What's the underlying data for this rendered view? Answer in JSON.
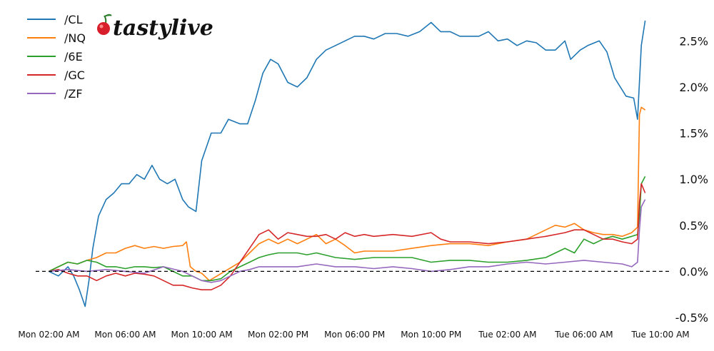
{
  "brand": {
    "name": "tastylive",
    "logo_icon": "cherry-icon"
  },
  "chart_data": {
    "type": "line",
    "title": "",
    "xlabel": "",
    "ylabel": "",
    "ylim": [
      -0.5,
      2.75
    ],
    "yticks": [
      -0.5,
      0.0,
      0.5,
      1.0,
      1.5,
      2.0,
      2.5
    ],
    "ytick_labels": [
      "-0.5%",
      "0.0%",
      "0.5%",
      "1.0%",
      "1.5%",
      "2.0%",
      "2.5%"
    ],
    "xlim": [
      1.5,
      34.0
    ],
    "xticks": [
      2,
      6,
      10,
      14,
      18,
      22,
      26,
      30,
      34
    ],
    "xtick_labels": [
      "Mon 02:00 AM",
      "Mon 06:00 AM",
      "Mon 10:00 AM",
      "Mon 02:00 PM",
      "Mon 06:00 PM",
      "Mon 10:00 PM",
      "Tue 02:00 AM",
      "Tue 06:00 AM",
      "Tue 10:00 AM"
    ],
    "x_unit": "hours since Mon 00:00",
    "reference_line": {
      "y": 0.0,
      "style": "dashed"
    },
    "legend_position": "top-left",
    "grid": false,
    "series": [
      {
        "name": "/CL",
        "color": "#1f77b4",
        "points": [
          [
            2.0,
            0.0
          ],
          [
            2.5,
            -0.05
          ],
          [
            3.0,
            0.05
          ],
          [
            3.3,
            -0.05
          ],
          [
            3.6,
            -0.2
          ],
          [
            3.9,
            -0.38
          ],
          [
            4.1,
            -0.1
          ],
          [
            4.3,
            0.25
          ],
          [
            4.6,
            0.6
          ],
          [
            5.0,
            0.78
          ],
          [
            5.4,
            0.85
          ],
          [
            5.8,
            0.95
          ],
          [
            6.2,
            0.95
          ],
          [
            6.6,
            1.05
          ],
          [
            7.0,
            1.0
          ],
          [
            7.4,
            1.15
          ],
          [
            7.8,
            1.0
          ],
          [
            8.2,
            0.95
          ],
          [
            8.6,
            1.0
          ],
          [
            9.0,
            0.78
          ],
          [
            9.3,
            0.7
          ],
          [
            9.7,
            0.65
          ],
          [
            10.0,
            1.2
          ],
          [
            10.5,
            1.5
          ],
          [
            11.0,
            1.5
          ],
          [
            11.4,
            1.65
          ],
          [
            12.0,
            1.6
          ],
          [
            12.4,
            1.6
          ],
          [
            12.8,
            1.85
          ],
          [
            13.2,
            2.15
          ],
          [
            13.6,
            2.3
          ],
          [
            14.0,
            2.25
          ],
          [
            14.5,
            2.05
          ],
          [
            15.0,
            2.0
          ],
          [
            15.5,
            2.1
          ],
          [
            16.0,
            2.3
          ],
          [
            16.5,
            2.4
          ],
          [
            17.0,
            2.45
          ],
          [
            17.5,
            2.5
          ],
          [
            18.0,
            2.55
          ],
          [
            18.5,
            2.55
          ],
          [
            19.0,
            2.52
          ],
          [
            19.6,
            2.58
          ],
          [
            20.2,
            2.58
          ],
          [
            20.8,
            2.55
          ],
          [
            21.4,
            2.6
          ],
          [
            22.0,
            2.7
          ],
          [
            22.5,
            2.6
          ],
          [
            23.0,
            2.6
          ],
          [
            23.5,
            2.55
          ],
          [
            24.0,
            2.55
          ],
          [
            24.5,
            2.55
          ],
          [
            25.0,
            2.6
          ],
          [
            25.5,
            2.5
          ],
          [
            26.0,
            2.52
          ],
          [
            26.5,
            2.45
          ],
          [
            27.0,
            2.5
          ],
          [
            27.5,
            2.48
          ],
          [
            28.0,
            2.4
          ],
          [
            28.5,
            2.4
          ],
          [
            29.0,
            2.5
          ],
          [
            29.3,
            2.3
          ],
          [
            29.8,
            2.4
          ],
          [
            30.2,
            2.45
          ],
          [
            30.8,
            2.5
          ],
          [
            31.2,
            2.38
          ],
          [
            31.6,
            2.1
          ],
          [
            31.9,
            2.0
          ],
          [
            32.2,
            1.9
          ],
          [
            32.6,
            1.88
          ],
          [
            32.8,
            1.65
          ],
          [
            33.0,
            2.45
          ],
          [
            33.2,
            2.72
          ]
        ]
      },
      {
        "name": "/NQ",
        "color": "#ff7f0e",
        "points": [
          [
            2.0,
            0.0
          ],
          [
            2.5,
            0.05
          ],
          [
            3.0,
            0.1
          ],
          [
            3.5,
            0.08
          ],
          [
            4.0,
            0.12
          ],
          [
            4.5,
            0.15
          ],
          [
            5.0,
            0.2
          ],
          [
            5.5,
            0.2
          ],
          [
            6.0,
            0.25
          ],
          [
            6.5,
            0.28
          ],
          [
            7.0,
            0.25
          ],
          [
            7.5,
            0.27
          ],
          [
            8.0,
            0.25
          ],
          [
            8.5,
            0.27
          ],
          [
            9.0,
            0.28
          ],
          [
            9.2,
            0.32
          ],
          [
            9.4,
            0.05
          ],
          [
            9.7,
            0.0
          ],
          [
            10.0,
            -0.02
          ],
          [
            10.4,
            -0.1
          ],
          [
            10.8,
            -0.05
          ],
          [
            11.2,
            0.0
          ],
          [
            11.6,
            0.05
          ],
          [
            12.0,
            0.1
          ],
          [
            12.5,
            0.2
          ],
          [
            13.0,
            0.3
          ],
          [
            13.5,
            0.35
          ],
          [
            14.0,
            0.3
          ],
          [
            14.5,
            0.35
          ],
          [
            15.0,
            0.3
          ],
          [
            15.5,
            0.35
          ],
          [
            16.0,
            0.4
          ],
          [
            16.5,
            0.3
          ],
          [
            17.0,
            0.35
          ],
          [
            17.5,
            0.28
          ],
          [
            18.0,
            0.2
          ],
          [
            18.5,
            0.22
          ],
          [
            19.0,
            0.22
          ],
          [
            20.0,
            0.22
          ],
          [
            21.0,
            0.25
          ],
          [
            22.0,
            0.28
          ],
          [
            23.0,
            0.3
          ],
          [
            24.0,
            0.3
          ],
          [
            25.0,
            0.28
          ],
          [
            26.0,
            0.32
          ],
          [
            27.0,
            0.35
          ],
          [
            28.0,
            0.45
          ],
          [
            28.5,
            0.5
          ],
          [
            29.0,
            0.48
          ],
          [
            29.5,
            0.52
          ],
          [
            30.0,
            0.45
          ],
          [
            30.5,
            0.42
          ],
          [
            31.0,
            0.4
          ],
          [
            31.5,
            0.4
          ],
          [
            32.0,
            0.38
          ],
          [
            32.5,
            0.42
          ],
          [
            32.8,
            0.48
          ],
          [
            32.9,
            1.7
          ],
          [
            33.0,
            1.78
          ],
          [
            33.2,
            1.75
          ]
        ]
      },
      {
        "name": "/6E",
        "color": "#2ca02c",
        "points": [
          [
            2.0,
            0.0
          ],
          [
            2.5,
            0.05
          ],
          [
            3.0,
            0.1
          ],
          [
            3.5,
            0.08
          ],
          [
            4.0,
            0.12
          ],
          [
            4.5,
            0.1
          ],
          [
            5.0,
            0.05
          ],
          [
            5.5,
            0.05
          ],
          [
            6.0,
            0.03
          ],
          [
            6.5,
            0.05
          ],
          [
            7.0,
            0.05
          ],
          [
            7.5,
            0.04
          ],
          [
            8.0,
            0.05
          ],
          [
            8.5,
            0.0
          ],
          [
            9.0,
            -0.05
          ],
          [
            9.5,
            -0.05
          ],
          [
            10.0,
            -0.1
          ],
          [
            10.5,
            -0.1
          ],
          [
            11.0,
            -0.08
          ],
          [
            11.5,
            0.0
          ],
          [
            12.0,
            0.05
          ],
          [
            12.5,
            0.1
          ],
          [
            13.0,
            0.15
          ],
          [
            13.5,
            0.18
          ],
          [
            14.0,
            0.2
          ],
          [
            14.5,
            0.2
          ],
          [
            15.0,
            0.2
          ],
          [
            15.5,
            0.18
          ],
          [
            16.0,
            0.2
          ],
          [
            17.0,
            0.15
          ],
          [
            18.0,
            0.13
          ],
          [
            19.0,
            0.15
          ],
          [
            20.0,
            0.15
          ],
          [
            21.0,
            0.15
          ],
          [
            22.0,
            0.1
          ],
          [
            23.0,
            0.12
          ],
          [
            24.0,
            0.12
          ],
          [
            25.0,
            0.1
          ],
          [
            26.0,
            0.1
          ],
          [
            27.0,
            0.12
          ],
          [
            28.0,
            0.15
          ],
          [
            29.0,
            0.25
          ],
          [
            29.5,
            0.2
          ],
          [
            30.0,
            0.35
          ],
          [
            30.5,
            0.3
          ],
          [
            31.0,
            0.35
          ],
          [
            31.5,
            0.38
          ],
          [
            32.0,
            0.35
          ],
          [
            32.5,
            0.38
          ],
          [
            32.8,
            0.4
          ],
          [
            32.9,
            0.6
          ],
          [
            33.0,
            0.95
          ],
          [
            33.2,
            1.03
          ]
        ]
      },
      {
        "name": "/GC",
        "color": "#d62728",
        "points": [
          [
            2.0,
            0.0
          ],
          [
            2.5,
            0.02
          ],
          [
            3.0,
            -0.02
          ],
          [
            3.5,
            -0.05
          ],
          [
            4.0,
            -0.05
          ],
          [
            4.5,
            -0.1
          ],
          [
            5.0,
            -0.05
          ],
          [
            5.5,
            -0.02
          ],
          [
            6.0,
            -0.05
          ],
          [
            6.5,
            -0.02
          ],
          [
            7.0,
            -0.03
          ],
          [
            7.5,
            -0.05
          ],
          [
            8.0,
            -0.1
          ],
          [
            8.5,
            -0.15
          ],
          [
            9.0,
            -0.15
          ],
          [
            9.5,
            -0.18
          ],
          [
            10.0,
            -0.2
          ],
          [
            10.5,
            -0.2
          ],
          [
            11.0,
            -0.15
          ],
          [
            11.5,
            -0.05
          ],
          [
            12.0,
            0.1
          ],
          [
            12.5,
            0.25
          ],
          [
            13.0,
            0.4
          ],
          [
            13.5,
            0.45
          ],
          [
            14.0,
            0.35
          ],
          [
            14.5,
            0.42
          ],
          [
            15.0,
            0.4
          ],
          [
            15.5,
            0.38
          ],
          [
            16.0,
            0.38
          ],
          [
            16.5,
            0.4
          ],
          [
            17.0,
            0.35
          ],
          [
            17.5,
            0.42
          ],
          [
            18.0,
            0.38
          ],
          [
            18.5,
            0.4
          ],
          [
            19.0,
            0.38
          ],
          [
            20.0,
            0.4
          ],
          [
            21.0,
            0.38
          ],
          [
            22.0,
            0.42
          ],
          [
            22.5,
            0.35
          ],
          [
            23.0,
            0.32
          ],
          [
            24.0,
            0.32
          ],
          [
            25.0,
            0.3
          ],
          [
            26.0,
            0.32
          ],
          [
            27.0,
            0.35
          ],
          [
            28.0,
            0.38
          ],
          [
            29.0,
            0.42
          ],
          [
            29.5,
            0.45
          ],
          [
            30.0,
            0.45
          ],
          [
            30.5,
            0.4
          ],
          [
            31.0,
            0.35
          ],
          [
            31.5,
            0.35
          ],
          [
            32.0,
            0.32
          ],
          [
            32.5,
            0.3
          ],
          [
            32.8,
            0.35
          ],
          [
            32.9,
            0.75
          ],
          [
            33.0,
            0.95
          ],
          [
            33.2,
            0.85
          ]
        ]
      },
      {
        "name": "/ZF",
        "color": "#9467bd",
        "points": [
          [
            2.0,
            0.0
          ],
          [
            3.0,
            0.02
          ],
          [
            4.0,
            0.0
          ],
          [
            5.0,
            0.02
          ],
          [
            6.0,
            0.0
          ],
          [
            7.0,
            -0.02
          ],
          [
            8.0,
            0.05
          ],
          [
            9.0,
            0.0
          ],
          [
            9.5,
            -0.05
          ],
          [
            10.0,
            -0.1
          ],
          [
            10.5,
            -0.12
          ],
          [
            11.0,
            -0.1
          ],
          [
            11.5,
            -0.05
          ],
          [
            12.0,
            0.0
          ],
          [
            12.5,
            0.02
          ],
          [
            13.0,
            0.05
          ],
          [
            14.0,
            0.05
          ],
          [
            15.0,
            0.05
          ],
          [
            16.0,
            0.08
          ],
          [
            17.0,
            0.05
          ],
          [
            18.0,
            0.05
          ],
          [
            19.0,
            0.03
          ],
          [
            20.0,
            0.05
          ],
          [
            21.0,
            0.03
          ],
          [
            22.0,
            0.0
          ],
          [
            23.0,
            0.02
          ],
          [
            24.0,
            0.05
          ],
          [
            25.0,
            0.05
          ],
          [
            26.0,
            0.08
          ],
          [
            27.0,
            0.1
          ],
          [
            28.0,
            0.08
          ],
          [
            29.0,
            0.1
          ],
          [
            30.0,
            0.12
          ],
          [
            31.0,
            0.1
          ],
          [
            32.0,
            0.08
          ],
          [
            32.5,
            0.05
          ],
          [
            32.8,
            0.1
          ],
          [
            32.9,
            0.45
          ],
          [
            33.0,
            0.7
          ],
          [
            33.2,
            0.78
          ]
        ]
      }
    ]
  }
}
